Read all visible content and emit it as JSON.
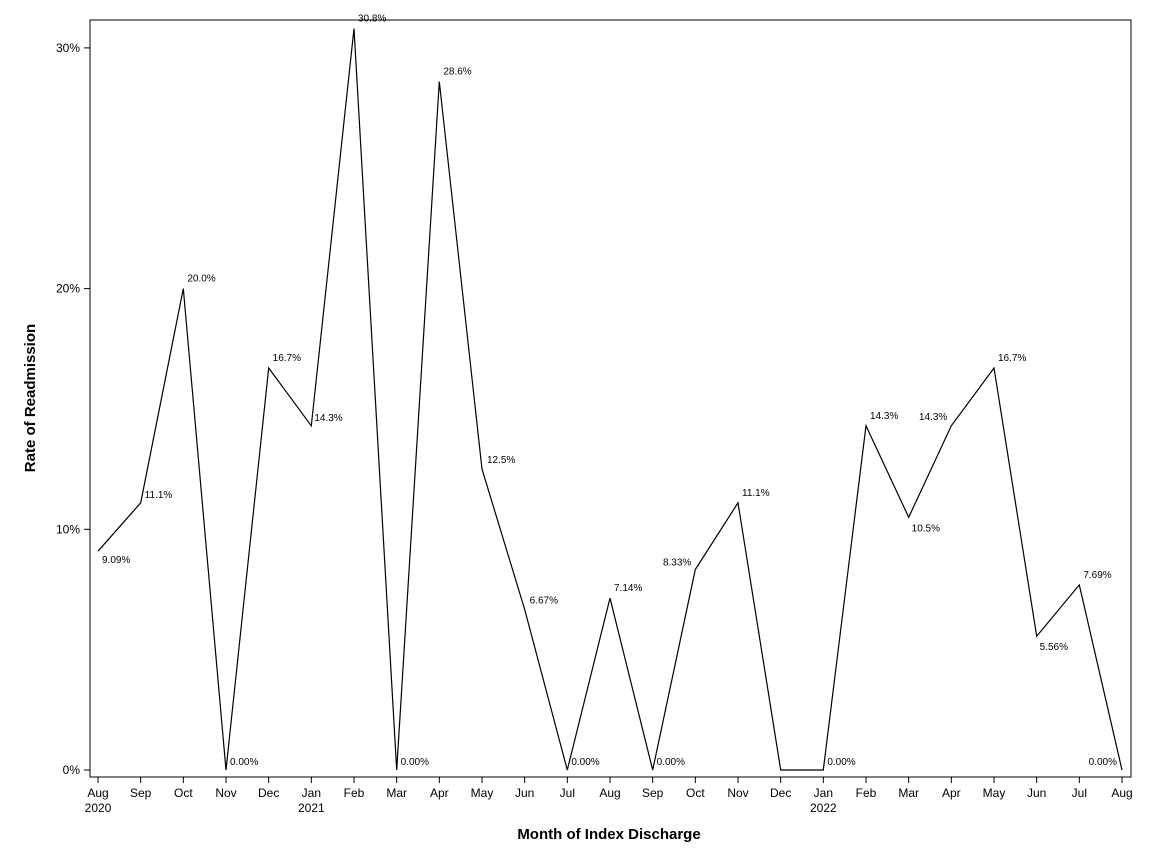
{
  "chart_data": {
    "type": "line",
    "xlabel": "Month of Index Discharge",
    "ylabel": "Rate of Readmission",
    "ylim": [
      0,
      31.5
    ],
    "yticks": [
      {
        "value": 0,
        "label": "0%"
      },
      {
        "value": 10,
        "label": "10%"
      },
      {
        "value": 20,
        "label": "20%"
      },
      {
        "value": 30,
        "label": "30%"
      }
    ],
    "grid": false,
    "categories": [
      "Aug",
      "Sep",
      "Oct",
      "Nov",
      "Dec",
      "Jan",
      "Feb",
      "Mar",
      "Apr",
      "May",
      "Jun",
      "Jul",
      "Aug",
      "Sep",
      "Oct",
      "Nov",
      "Dec",
      "Jan",
      "Feb",
      "Mar",
      "Apr",
      "May",
      "Jun",
      "Jul",
      "Aug"
    ],
    "year_labels": [
      {
        "index": 0,
        "label": "2020"
      },
      {
        "index": 5,
        "label": "2021"
      },
      {
        "index": 17,
        "label": "2022"
      }
    ],
    "series": [
      {
        "values": [
          9.09,
          11.1,
          20.0,
          0.0,
          16.7,
          14.3,
          30.8,
          0.0,
          28.6,
          12.5,
          6.67,
          0.0,
          7.14,
          0.0,
          8.33,
          11.1,
          0.0,
          0.0,
          14.3,
          10.5,
          14.3,
          16.7,
          5.56,
          7.69,
          0.0
        ],
        "labels": [
          "9.09%",
          "11.1%",
          "20.0%",
          "0.00%",
          "16.7%",
          "14.3%",
          "30.8%",
          "0.00%",
          "28.6%",
          "12.5%",
          "6.67%",
          "0.00%",
          "7.14%",
          "0.00%",
          "8.33%",
          "11.1%",
          "",
          "0.00%",
          "14.3%",
          "10.5%",
          "14.3%",
          "16.7%",
          "5.56%",
          "7.69%",
          "0.00%"
        ]
      }
    ]
  }
}
